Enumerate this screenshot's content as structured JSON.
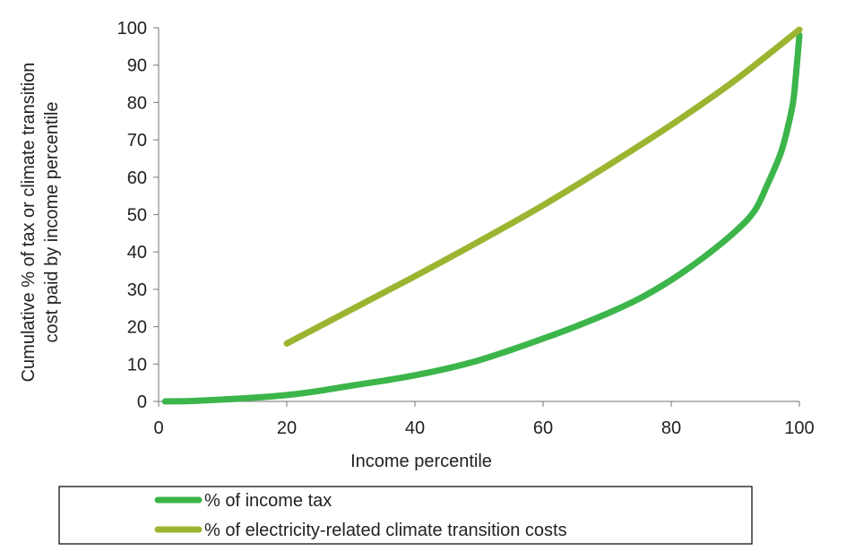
{
  "chart_data": {
    "type": "line",
    "title": "",
    "xlabel": "Income percentile",
    "ylabel_lines": [
      "Cumulative  % of tax or climate transition",
      "cost paid by income percentile"
    ],
    "xlim": [
      0,
      100
    ],
    "ylim": [
      0,
      100
    ],
    "xticks": [
      0,
      20,
      40,
      60,
      80,
      100
    ],
    "yticks": [
      0,
      10,
      20,
      30,
      40,
      50,
      60,
      70,
      80,
      90,
      100
    ],
    "grid": false,
    "legend_position": "bottom",
    "series": [
      {
        "name": "% of income tax",
        "color": "#3cb54a",
        "x": [
          1,
          5,
          10,
          15,
          20,
          25,
          30,
          35,
          40,
          45,
          50,
          55,
          60,
          65,
          70,
          75,
          80,
          85,
          90,
          93,
          95,
          97,
          98,
          99,
          99.5,
          100
        ],
        "y": [
          0,
          0.1,
          0.5,
          1.0,
          1.7,
          2.8,
          4.2,
          5.5,
          7.0,
          8.8,
          11.0,
          13.8,
          16.8,
          20.0,
          23.5,
          27.5,
          32.5,
          38.5,
          45.5,
          51,
          58,
          66,
          72,
          80,
          88,
          98
        ]
      },
      {
        "name": "% of electricity-related climate transition costs",
        "color": "#9bb531",
        "x": [
          20,
          30,
          40,
          50,
          60,
          70,
          80,
          90,
          100
        ],
        "y": [
          15.5,
          24.5,
          33.5,
          42.8,
          52.5,
          63.0,
          74.0,
          86.0,
          99.5
        ]
      }
    ]
  }
}
